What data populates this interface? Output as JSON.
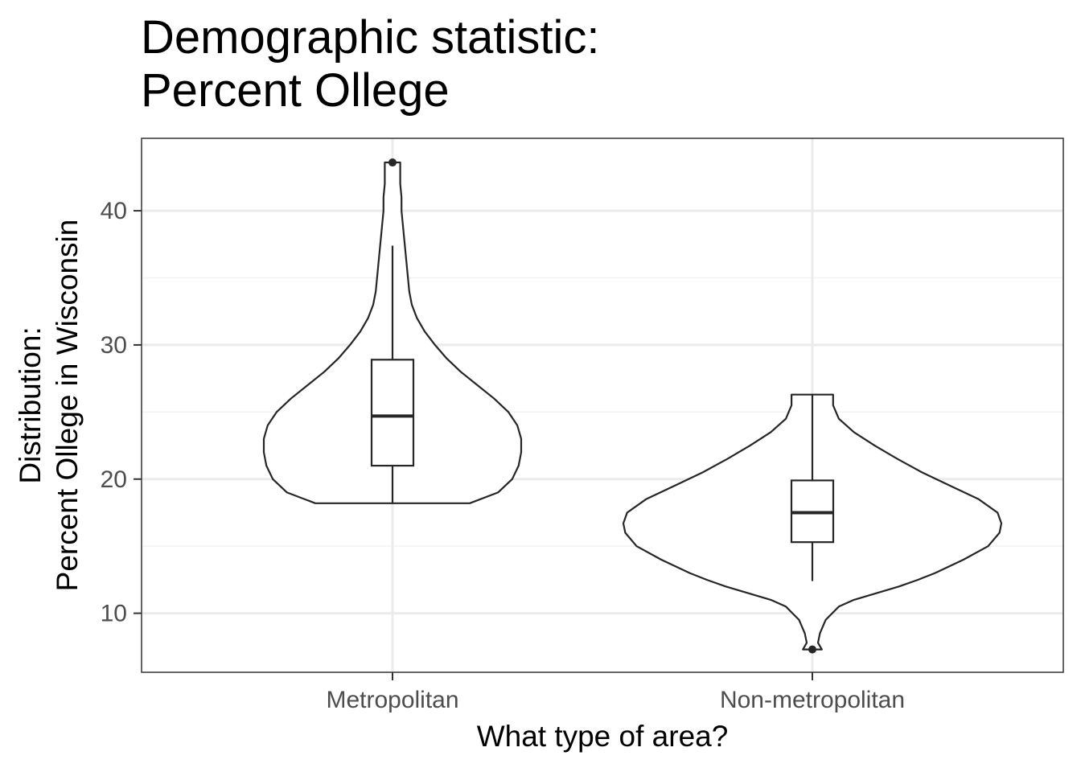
{
  "title_lines": [
    "Demographic statistic:",
    "Percent Ollege"
  ],
  "chart_data": {
    "type": "violin",
    "title": "Demographic statistic:\nPercent Ollege",
    "xlabel": "What type of area?",
    "ylabel_lines": [
      "Distribution:",
      "Percent Ollege in Wisconsin"
    ],
    "categories": [
      "Metropolitan",
      "Non-metropolitan"
    ],
    "ylim": [
      5.6,
      45.4
    ],
    "yticks": [
      10,
      20,
      30,
      40
    ],
    "yminor": [
      15,
      25,
      35
    ],
    "grid": true,
    "series": [
      {
        "category": "Metropolitan",
        "min": 18.2,
        "max": 43.6,
        "box": {
          "lower_whisker": 18.2,
          "q1": 21.0,
          "median": 24.7,
          "q3": 28.9,
          "upper_whisker": 37.4
        },
        "outliers": [
          43.6
        ],
        "violin": [
          {
            "y": 18.2,
            "w": 0.6
          },
          {
            "y": 19.0,
            "w": 0.82
          },
          {
            "y": 20.0,
            "w": 0.93
          },
          {
            "y": 21.0,
            "w": 0.98
          },
          {
            "y": 22.0,
            "w": 1.0
          },
          {
            "y": 23.0,
            "w": 1.0
          },
          {
            "y": 24.0,
            "w": 0.97
          },
          {
            "y": 25.0,
            "w": 0.9
          },
          {
            "y": 26.0,
            "w": 0.79
          },
          {
            "y": 27.0,
            "w": 0.66
          },
          {
            "y": 28.0,
            "w": 0.53
          },
          {
            "y": 29.0,
            "w": 0.42
          },
          {
            "y": 30.0,
            "w": 0.33
          },
          {
            "y": 31.0,
            "w": 0.25
          },
          {
            "y": 32.0,
            "w": 0.19
          },
          {
            "y": 33.0,
            "w": 0.15
          },
          {
            "y": 34.0,
            "w": 0.13
          },
          {
            "y": 35.0,
            "w": 0.12
          },
          {
            "y": 36.0,
            "w": 0.11
          },
          {
            "y": 37.0,
            "w": 0.1
          },
          {
            "y": 38.0,
            "w": 0.09
          },
          {
            "y": 39.0,
            "w": 0.08
          },
          {
            "y": 40.0,
            "w": 0.07
          },
          {
            "y": 41.0,
            "w": 0.07
          },
          {
            "y": 42.0,
            "w": 0.06
          },
          {
            "y": 43.0,
            "w": 0.06
          },
          {
            "y": 43.6,
            "w": 0.06
          }
        ]
      },
      {
        "category": "Non-metropolitan",
        "min": 7.3,
        "max": 26.3,
        "box": {
          "lower_whisker": 12.4,
          "q1": 15.3,
          "median": 17.5,
          "q3": 19.9,
          "upper_whisker": 26.3
        },
        "outliers": [
          7.3
        ],
        "violin": [
          {
            "y": 7.3,
            "w": 0.05
          },
          {
            "y": 7.8,
            "w": 0.03
          },
          {
            "y": 8.5,
            "w": 0.04
          },
          {
            "y": 9.5,
            "w": 0.07
          },
          {
            "y": 10.5,
            "w": 0.14
          },
          {
            "y": 11.0,
            "w": 0.22
          },
          {
            "y": 11.5,
            "w": 0.34
          },
          {
            "y": 12.0,
            "w": 0.46
          },
          {
            "y": 12.5,
            "w": 0.56
          },
          {
            "y": 13.0,
            "w": 0.65
          },
          {
            "y": 14.0,
            "w": 0.8
          },
          {
            "y": 15.0,
            "w": 0.93
          },
          {
            "y": 16.0,
            "w": 0.99
          },
          {
            "y": 16.7,
            "w": 1.0
          },
          {
            "y": 17.5,
            "w": 0.98
          },
          {
            "y": 18.5,
            "w": 0.88
          },
          {
            "y": 19.5,
            "w": 0.73
          },
          {
            "y": 20.5,
            "w": 0.58
          },
          {
            "y": 21.5,
            "w": 0.45
          },
          {
            "y": 22.5,
            "w": 0.33
          },
          {
            "y": 23.5,
            "w": 0.22
          },
          {
            "y": 24.5,
            "w": 0.14
          },
          {
            "y": 25.5,
            "w": 0.11
          },
          {
            "y": 26.3,
            "w": 0.11
          }
        ]
      }
    ]
  },
  "colors": {
    "panel_border": "#333333",
    "grid_major": "#ebebeb",
    "grid_minor": "#f2f2f2",
    "ink": "#262626",
    "tick_text": "#4d4d4d"
  }
}
